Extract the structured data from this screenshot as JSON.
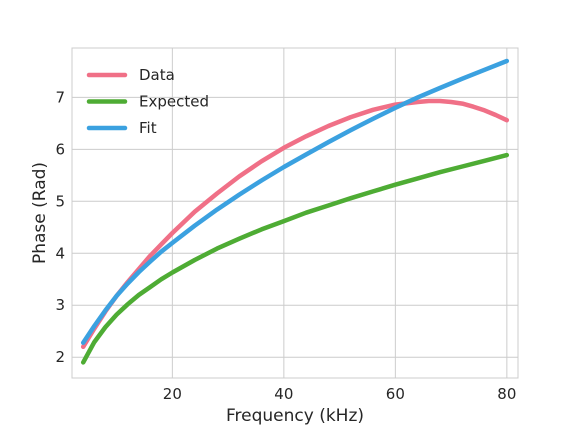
{
  "chart_data": {
    "type": "line",
    "title": "",
    "xlabel": "Frequency (kHz)",
    "ylabel": "Phase (Rad)",
    "xlim": [
      2,
      82
    ],
    "ylim": [
      1.6,
      7.95
    ],
    "xticks": [
      20,
      40,
      60,
      80
    ],
    "yticks": [
      2,
      3,
      4,
      5,
      6,
      7
    ],
    "grid": true,
    "legend_position": "top-left",
    "series": [
      {
        "name": "Data",
        "color": "#f07087",
        "x": [
          4,
          6,
          8,
          10,
          12,
          14,
          16,
          18,
          20,
          24,
          28,
          32,
          36,
          40,
          44,
          48,
          52,
          56,
          60,
          64,
          66,
          68,
          70,
          72,
          74,
          76,
          78,
          80
        ],
        "y": [
          2.2,
          2.55,
          2.88,
          3.18,
          3.45,
          3.7,
          3.95,
          4.17,
          4.39,
          4.8,
          5.15,
          5.48,
          5.77,
          6.03,
          6.25,
          6.45,
          6.62,
          6.76,
          6.86,
          6.91,
          6.93,
          6.93,
          6.91,
          6.88,
          6.82,
          6.75,
          6.66,
          6.56
        ]
      },
      {
        "name": "Expected",
        "color": "#4eac34",
        "x": [
          4,
          6,
          8,
          10,
          12,
          14,
          16,
          18,
          20,
          24,
          28,
          32,
          36,
          40,
          44,
          48,
          52,
          56,
          60,
          64,
          68,
          72,
          76,
          80
        ],
        "y": [
          1.9,
          2.29,
          2.58,
          2.82,
          3.02,
          3.2,
          3.35,
          3.5,
          3.63,
          3.87,
          4.09,
          4.28,
          4.46,
          4.62,
          4.78,
          4.92,
          5.06,
          5.19,
          5.32,
          5.44,
          5.56,
          5.67,
          5.78,
          5.89
        ]
      },
      {
        "name": "Fit",
        "color": "#3ba1e0",
        "x": [
          4,
          6,
          8,
          10,
          12,
          14,
          16,
          18,
          20,
          24,
          28,
          32,
          36,
          40,
          44,
          48,
          52,
          56,
          60,
          64,
          68,
          72,
          76,
          80
        ],
        "y": [
          2.28,
          2.6,
          2.9,
          3.18,
          3.42,
          3.64,
          3.84,
          4.03,
          4.2,
          4.53,
          4.84,
          5.13,
          5.4,
          5.66,
          5.9,
          6.14,
          6.37,
          6.59,
          6.8,
          7.0,
          7.18,
          7.36,
          7.53,
          7.7
        ]
      }
    ]
  }
}
